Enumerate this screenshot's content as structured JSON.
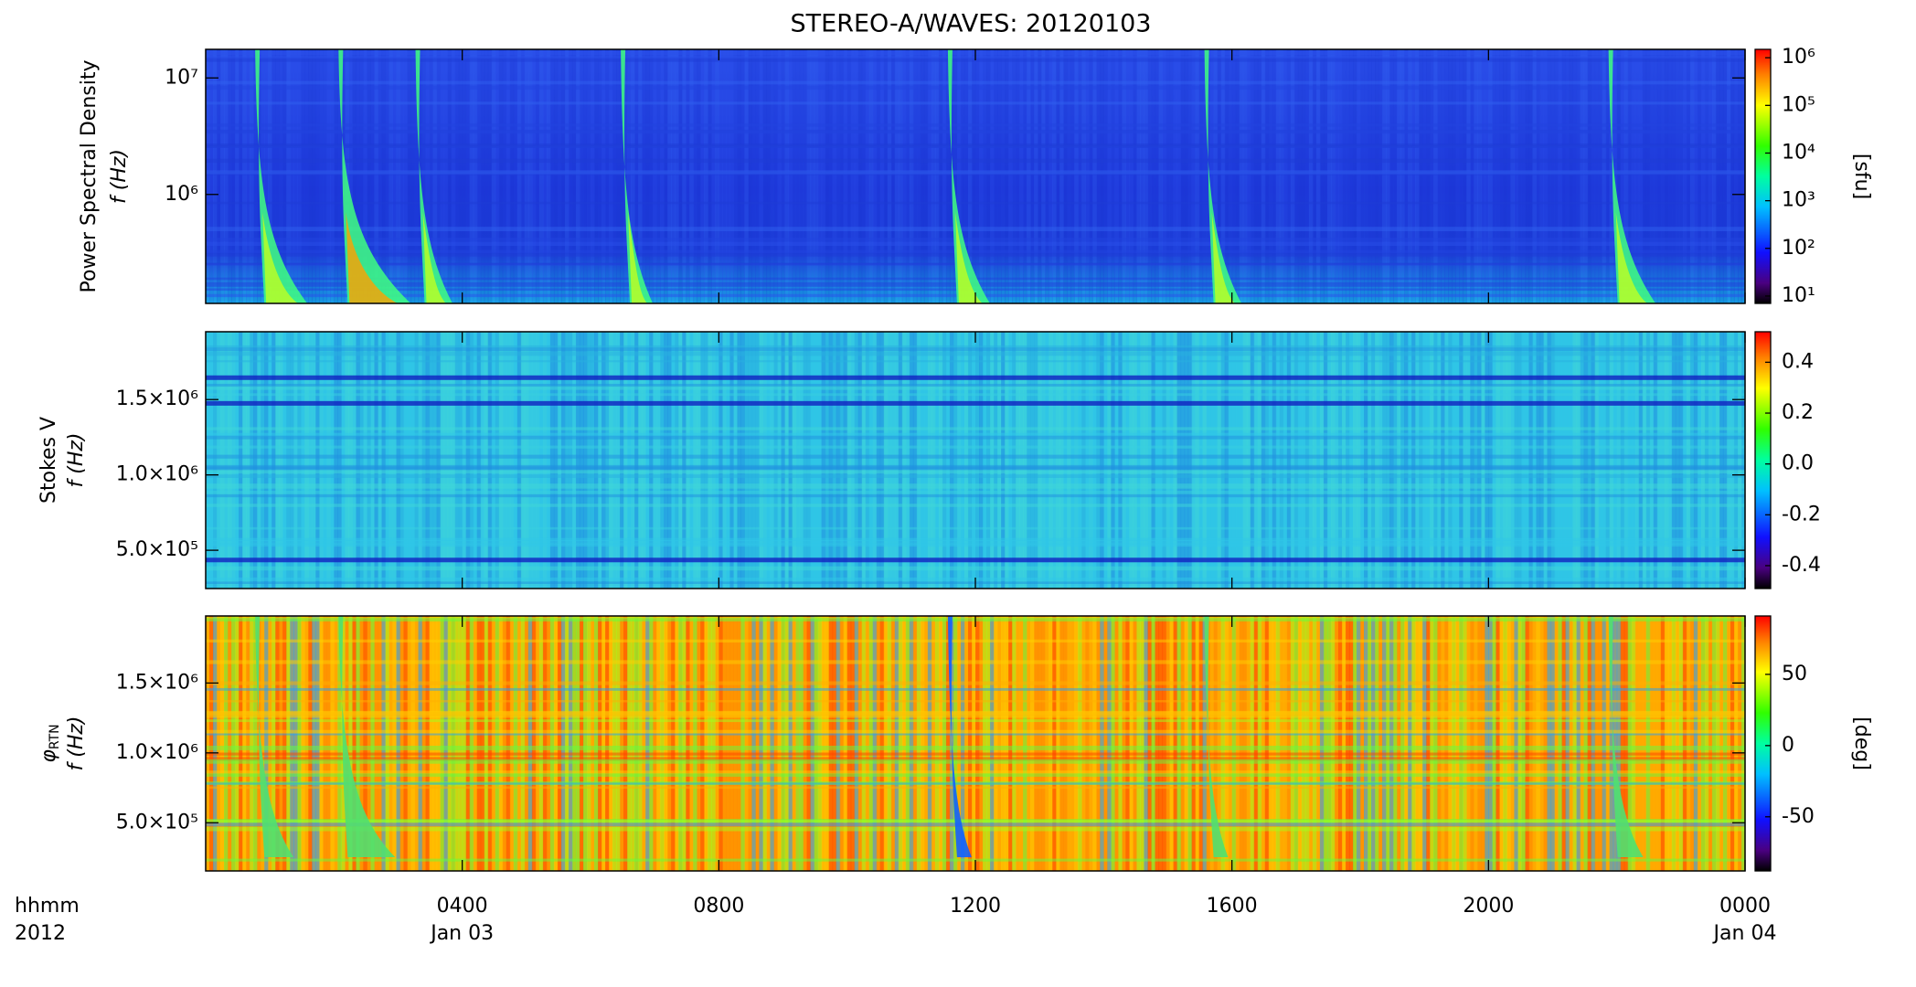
{
  "chart_data": [
    {
      "type": "spectrogram",
      "title": "STEREO-A/WAVES: 20120103",
      "ylabel": "Power Spectral Density",
      "ylabel_f": "f (Hz)",
      "ylog": true,
      "ylim": [
        116000,
        17600000
      ],
      "yticks": [
        {
          "value": 1000000,
          "label": "10⁶"
        },
        {
          "value": 10000000,
          "label": "10⁷"
        }
      ],
      "colorbar": {
        "log": true,
        "lim": [
          7,
          1500000
        ],
        "label": "[sfu]",
        "ticks": [
          {
            "value": 10,
            "label": "10¹"
          },
          {
            "value": 100,
            "label": "10²"
          },
          {
            "value": 1000,
            "label": "10³"
          },
          {
            "value": 10000,
            "label": "10⁴"
          },
          {
            "value": 100000,
            "label": "10⁵"
          },
          {
            "value": 1000000,
            "label": "10⁶"
          }
        ]
      }
    },
    {
      "type": "spectrogram",
      "ylabel": "Stokes V",
      "ylabel_f": "f (Hz)",
      "ylog": false,
      "ylim": [
        246000,
        1950000
      ],
      "yticks": [
        {
          "value": 500000,
          "label": "5.0×10⁵"
        },
        {
          "value": 1000000,
          "label": "1.0×10⁶"
        },
        {
          "value": 1500000,
          "label": "1.5×10⁶"
        }
      ],
      "colorbar": {
        "log": false,
        "lim": [
          -0.49,
          0.52
        ],
        "ticks": [
          -0.4,
          -0.2,
          {
            "value": 0,
            "label": "0.0"
          },
          0.2,
          0.4
        ]
      }
    },
    {
      "type": "spectrogram",
      "ylabel_symbol": "φ",
      "ylabel_subscript": "RTN",
      "ylabel_f": "f (Hz)",
      "ylog": false,
      "ylim": [
        155000,
        1980000
      ],
      "yticks": [
        {
          "value": 500000,
          "label": "5.0×10⁵"
        },
        {
          "value": 1000000,
          "label": "1.0×10⁶"
        },
        {
          "value": 1500000,
          "label": "1.5×10⁶"
        }
      ],
      "colorbar": {
        "log": false,
        "lim": [
          -88,
          91
        ],
        "label": "[deg]",
        "ticks": [
          -50,
          0,
          50
        ]
      },
      "xlabel": "hhmm",
      "xlabel_year": "2012",
      "xlim": [
        0,
        24
      ],
      "xticks": [
        {
          "value": 4,
          "label": "0400"
        },
        {
          "value": 8,
          "label": "0800"
        },
        {
          "value": 12,
          "label": "1200"
        },
        {
          "value": 16,
          "label": "1600"
        },
        {
          "value": 20,
          "label": "2000"
        },
        {
          "value": 24,
          "label": "0000"
        }
      ],
      "x_date_labels": [
        {
          "value": 4,
          "label": "Jan 03"
        },
        {
          "value": 24,
          "label": "Jan 04"
        }
      ]
    }
  ]
}
